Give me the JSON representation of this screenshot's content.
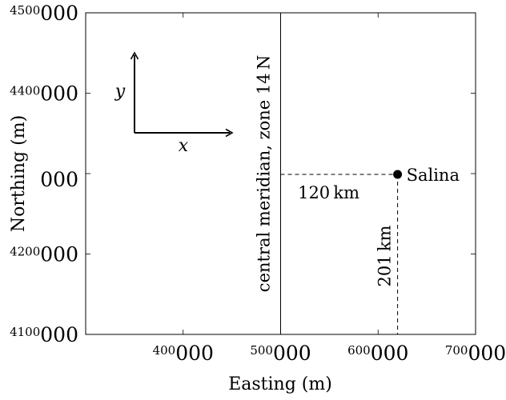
{
  "chart_data": {
    "type": "scatter",
    "xlabel": "Easting (m)",
    "ylabel": "Northing (m)",
    "xlim": [
      300000,
      700000
    ],
    "ylim": [
      4100000,
      4500000
    ],
    "x_ticks": [
      {
        "value": 400000,
        "sup": "400",
        "main": "000"
      },
      {
        "value": 500000,
        "sup": "500",
        "main": "000"
      },
      {
        "value": 600000,
        "sup": "600",
        "main": "000"
      },
      {
        "value": 700000,
        "sup": "700",
        "main": "000"
      }
    ],
    "y_ticks": [
      {
        "value": 4100000,
        "sup": "4100",
        "main": "000"
      },
      {
        "value": 4200000,
        "sup": "4200",
        "main": "000"
      },
      {
        "value": 4300000,
        "sup": "",
        "main": "000"
      },
      {
        "value": 4400000,
        "sup": "4400",
        "main": "000"
      },
      {
        "value": 4500000,
        "sup": "4500",
        "main": "000"
      }
    ],
    "central_meridian": {
      "x": 500000,
      "label": "central meridian, zone 14 N"
    },
    "point": {
      "name": "Salina",
      "x": 620000,
      "y": 4299000
    },
    "annotations": {
      "easting_distance": "120 km",
      "northing_distance": "201 km"
    },
    "axes_legend": {
      "x_label": "x",
      "y_label": "y"
    }
  }
}
